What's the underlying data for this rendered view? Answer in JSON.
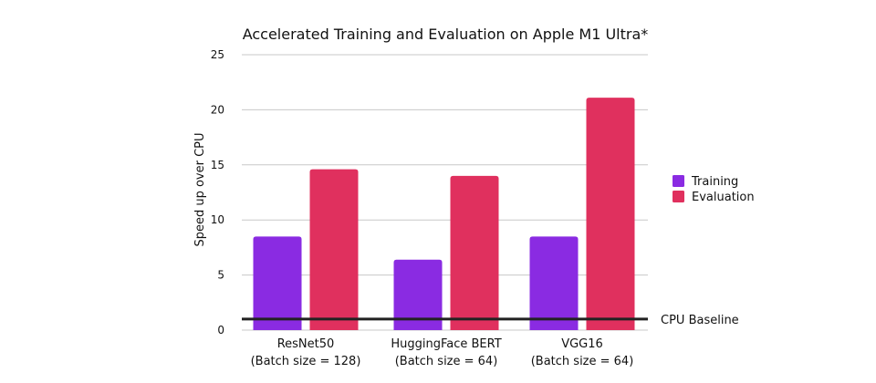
{
  "chart_data": {
    "type": "bar",
    "title": "Accelerated Training and Evaluation on Apple M1 Ultra*",
    "xlabel": "",
    "ylabel": "Speed up over CPU",
    "ylim": [
      0,
      25
    ],
    "yticks": [
      0,
      5,
      10,
      15,
      20,
      25
    ],
    "grid": true,
    "legend_position": "right",
    "categories": [
      [
        "ResNet50",
        "(Batch size = 128)"
      ],
      [
        "HuggingFace BERT",
        "(Batch size = 64)"
      ],
      [
        "VGG16",
        "(Batch size = 64)"
      ]
    ],
    "series": [
      {
        "name": "Training",
        "color": "#8a2be2",
        "values": [
          8.5,
          6.4,
          8.5
        ]
      },
      {
        "name": "Evaluation",
        "color": "#e0305e",
        "values": [
          14.6,
          14.0,
          21.1
        ]
      }
    ],
    "reference_line": {
      "label": "CPU Baseline",
      "value": 1,
      "color": "#222222"
    }
  }
}
